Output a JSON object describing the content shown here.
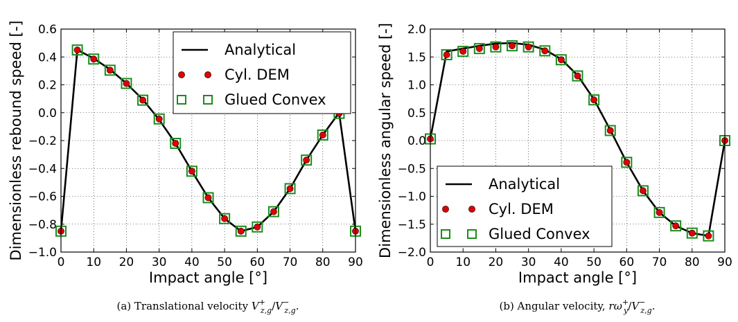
{
  "chart_data": [
    {
      "type": "line",
      "xlabel": "Impact angle [°]",
      "ylabel": "Dimensionless rebound speed [-]",
      "xlim": [
        0,
        90
      ],
      "ylim": [
        -1.0,
        0.6
      ],
      "xticks": [
        "0",
        "10",
        "20",
        "30",
        "40",
        "50",
        "60",
        "70",
        "80",
        "90"
      ],
      "yticks": [
        "−1.0",
        "−0.8",
        "−0.6",
        "−0.4",
        "−0.2",
        "0.0",
        "0.2",
        "0.4",
        "0.6"
      ],
      "grid": true,
      "legend_position": "top-right",
      "caption": "(a) Translational velocity V+z,g/V−z,g.",
      "caption_parts": {
        "prefix": "(a) Translational velocity ",
        "v1": "V",
        "sup1": "+",
        "sub1": "z,g",
        "slash": "/",
        "v2": "V",
        "sup2": "−",
        "sub2": "z,g",
        "end": "."
      },
      "series": [
        {
          "name": "Analytical",
          "style": "line",
          "color": "#000000",
          "x": [
            0,
            5,
            10,
            15,
            20,
            25,
            30,
            35,
            40,
            45,
            50,
            55,
            60,
            65,
            70,
            75,
            80,
            85,
            90
          ],
          "y": [
            -0.85,
            0.45,
            0.39,
            0.31,
            0.21,
            0.095,
            -0.05,
            -0.22,
            -0.42,
            -0.61,
            -0.76,
            -0.85,
            -0.82,
            -0.71,
            -0.545,
            -0.34,
            -0.16,
            0.0,
            -0.85
          ]
        },
        {
          "name": "Cyl. DEM",
          "style": "dot",
          "color": "#e00000",
          "x": [
            0,
            5,
            10,
            15,
            20,
            25,
            30,
            35,
            40,
            45,
            50,
            55,
            60,
            65,
            70,
            75,
            80,
            85,
            90
          ],
          "y": [
            -0.85,
            0.45,
            0.385,
            0.305,
            0.21,
            0.09,
            -0.045,
            -0.22,
            -0.42,
            -0.61,
            -0.76,
            -0.85,
            -0.82,
            -0.71,
            -0.545,
            -0.34,
            -0.16,
            -0.005,
            -0.85
          ]
        },
        {
          "name": "Glued Convex",
          "style": "square",
          "color": "#1a8c1a",
          "x": [
            0,
            5,
            10,
            15,
            20,
            25,
            30,
            35,
            40,
            45,
            50,
            55,
            60,
            65,
            70,
            75,
            80,
            85,
            90
          ],
          "y": [
            -0.85,
            0.45,
            0.385,
            0.305,
            0.21,
            0.09,
            -0.045,
            -0.22,
            -0.42,
            -0.61,
            -0.76,
            -0.85,
            -0.82,
            -0.71,
            -0.545,
            -0.34,
            -0.16,
            -0.005,
            -0.85
          ]
        }
      ]
    },
    {
      "type": "line",
      "xlabel": "Impact angle [°]",
      "ylabel": "Dimensionless angular speed [-]",
      "xlim": [
        0,
        90
      ],
      "ylim": [
        -2.0,
        2.0
      ],
      "xticks": [
        "0",
        "10",
        "20",
        "30",
        "40",
        "50",
        "60",
        "70",
        "80",
        "90"
      ],
      "yticks": [
        "−2.0",
        "−1.5",
        "−1.0",
        "−0.5",
        "0.0",
        "0.5",
        "1.0",
        "1.5",
        "2.0"
      ],
      "grid": true,
      "legend_position": "bottom-left",
      "caption": "(b) Angular velocity, rω+y/V−z,g.",
      "caption_parts": {
        "prefix": "(b) Angular velocity, ",
        "v1": "rω",
        "sup1": "+",
        "sub1": "y",
        "slash": "/",
        "v2": "V",
        "sup2": "−",
        "sub2": "z,g",
        "end": "."
      },
      "series": [
        {
          "name": "Analytical",
          "style": "line",
          "color": "#000000",
          "x": [
            0,
            5,
            10,
            15,
            20,
            25,
            30,
            35,
            40,
            45,
            50,
            55,
            60,
            65,
            70,
            75,
            80,
            85,
            90
          ],
          "y": [
            0.03,
            1.6,
            1.65,
            1.7,
            1.74,
            1.75,
            1.72,
            1.63,
            1.46,
            1.17,
            0.74,
            0.19,
            -0.39,
            -0.9,
            -1.29,
            -1.53,
            -1.66,
            -1.71,
            0.0
          ]
        },
        {
          "name": "Cyl. DEM",
          "style": "dot",
          "color": "#e00000",
          "x": [
            0,
            5,
            10,
            15,
            20,
            25,
            30,
            35,
            40,
            45,
            50,
            55,
            60,
            65,
            70,
            75,
            80,
            85,
            90
          ],
          "y": [
            0.03,
            1.54,
            1.6,
            1.65,
            1.68,
            1.7,
            1.68,
            1.61,
            1.45,
            1.16,
            0.73,
            0.18,
            -0.39,
            -0.9,
            -1.29,
            -1.53,
            -1.66,
            -1.71,
            0.0
          ]
        },
        {
          "name": "Glued Convex",
          "style": "square",
          "color": "#1a8c1a",
          "x": [
            0,
            5,
            10,
            15,
            20,
            25,
            30,
            35,
            40,
            45,
            50,
            55,
            60,
            65,
            70,
            75,
            80,
            85,
            90
          ],
          "y": [
            0.03,
            1.54,
            1.6,
            1.65,
            1.68,
            1.7,
            1.68,
            1.61,
            1.45,
            1.16,
            0.73,
            0.18,
            -0.39,
            -0.9,
            -1.29,
            -1.53,
            -1.66,
            -1.71,
            0.0
          ]
        }
      ]
    }
  ]
}
